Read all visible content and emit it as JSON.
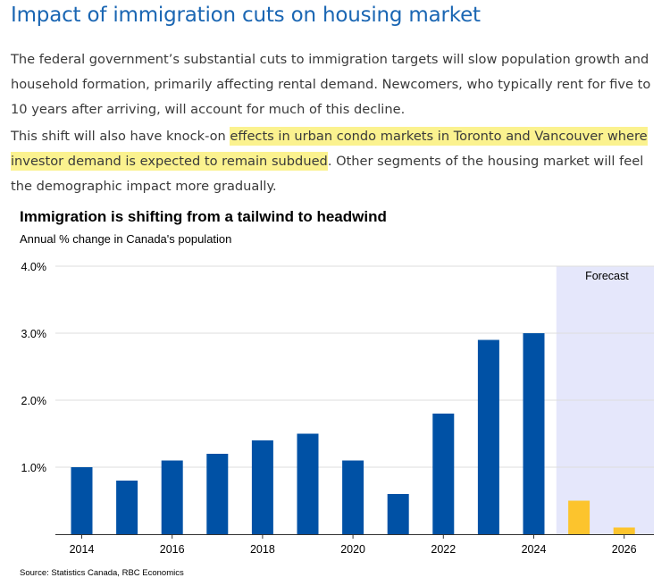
{
  "article": {
    "title": "Impact of immigration cuts on housing market",
    "paragraph1": "The federal government’s substantial cuts to immigration targets will slow population growth and household formation, primarily affecting rental demand. Newcomers, who typically rent for five to 10 years after arriving, will account for much of this decline.",
    "paragraph2_before": "This shift will also have knock-on ",
    "paragraph2_highlight": "effects in urban condo markets in Toronto and Vancouver where investor demand is expected to remain subdued",
    "paragraph2_after": ". Other segments of the housing market will feel the demographic impact more gradually.",
    "highlight_color": "#fbf28f",
    "title_color": "#1a66b3"
  },
  "chart_data": {
    "type": "bar",
    "title": "Immigration is shifting from a tailwind to headwind",
    "subtitle": "Annual % change in Canada's population",
    "source": "Source: Statistics Canada, RBC Economics",
    "categories": [
      "2014",
      "2015",
      "2016",
      "2017",
      "2018",
      "2019",
      "2020",
      "2021",
      "2022",
      "2023",
      "2024",
      "2025",
      "2026"
    ],
    "series": [
      {
        "values": [
          1.0,
          0.8,
          1.1,
          1.2,
          1.4,
          1.5,
          1.1,
          0.6,
          1.8,
          2.9,
          3.0,
          0.5,
          0.1
        ]
      }
    ],
    "forecast_from": "2025",
    "forecast_label": "Forecast",
    "tick_labels_x": [
      "2014",
      "2016",
      "2018",
      "2020",
      "2022",
      "2024",
      "2026"
    ],
    "ylim": [
      0,
      4
    ],
    "yticks": [
      1,
      2,
      3,
      4
    ],
    "ytick_labels": [
      "1.0%",
      "2.0%",
      "3.0%",
      "4.0%"
    ],
    "grid": true,
    "colors": {
      "actual": "#0051a5",
      "forecast": "#fcc42d",
      "forecast_band": "#e5e7fb",
      "grid": "#dddddd",
      "axis": "#333333"
    }
  }
}
